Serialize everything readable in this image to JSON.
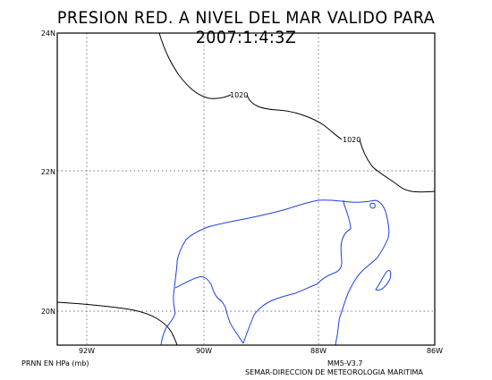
{
  "title": "PRESION RED. A NIVEL DEL MAR VALIDO PARA 2007:1:4:3Z",
  "map": {
    "lat_labels": [
      "24N",
      "22N",
      "20N"
    ],
    "lon_labels": [
      "92W",
      "90W",
      "88W",
      "86W"
    ],
    "contours": [
      {
        "value": "1020",
        "label": "1020"
      },
      {
        "value": "1020",
        "label": "1020"
      }
    ],
    "colors": {
      "coastline": "#1f3fe6",
      "isobar": "#000000",
      "grid": "#444444"
    }
  },
  "footer": {
    "variable": "PRNN EN HPa (mb)",
    "model": "MM5-V3.7",
    "agency": "SEMAR-DIRECCION DE METEOROLOGIA MARITIMA"
  }
}
